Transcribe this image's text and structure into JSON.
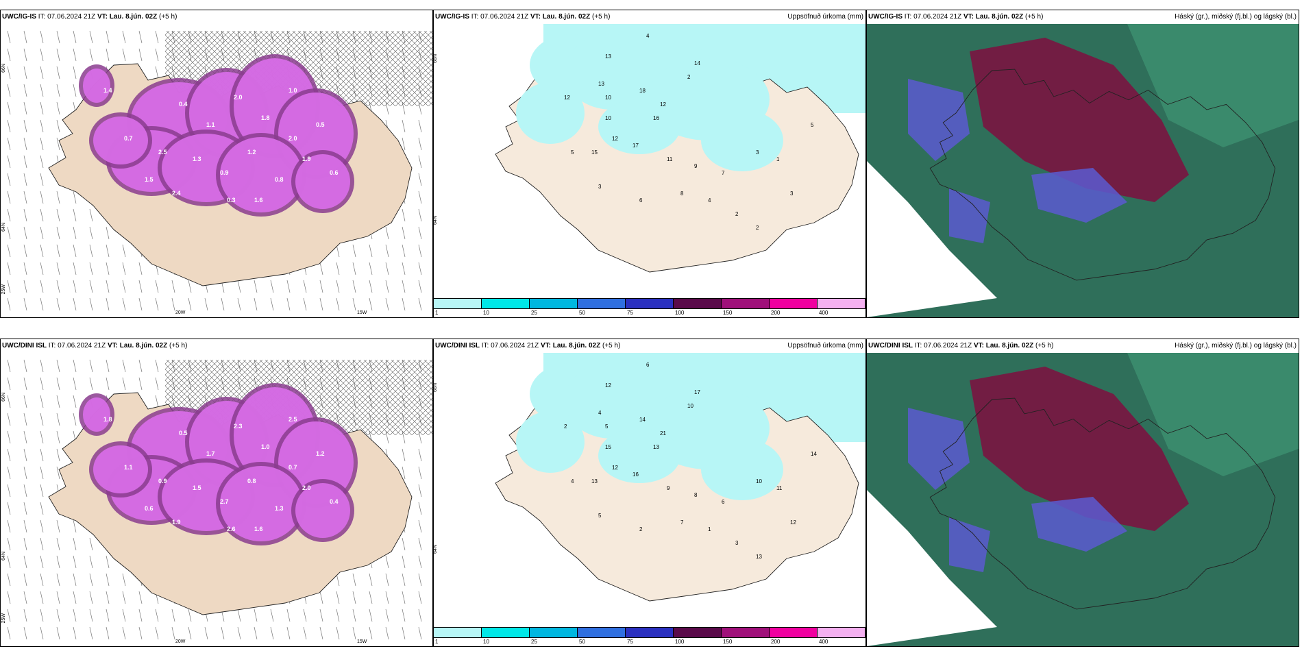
{
  "colors": {
    "land": "#eed9c3",
    "landLight": "#f6eadc",
    "precipCyan": "#b7f6f6",
    "snowMagenta": "#d96ee8",
    "snowDark": "#8a3c8e",
    "cloudHigh": "#7a1440",
    "cloudMid": "#5a5ad0",
    "cloudLow": "#2f7f62",
    "sea": "#ffffff"
  },
  "panels": [
    {
      "model": "UWC/IG-IS",
      "it": "IT: 07.06.2024 21Z",
      "vt_label": "VT:",
      "vt": "Lau. 8.jún. 02Z",
      "lead": "(+5 h)",
      "right": "",
      "lat_labels": [
        "66N",
        "64N",
        "25W"
      ],
      "lon_labels": [
        "20W",
        "15W"
      ],
      "snow_values": [
        "0.4",
        "1.1",
        "2.0",
        "1.8",
        "1.0",
        "0.5",
        "2.5",
        "1.3",
        "0.9",
        "1.2",
        "0.8",
        "1.9",
        "0.7",
        "1.5",
        "2.4",
        "0.3",
        "1.6",
        "0.6",
        "1.4",
        "2.0"
      ]
    },
    {
      "model": "UWC/IG-IS",
      "it": "IT: 07.06.2024 21Z",
      "vt_label": "VT:",
      "vt": "Lau. 8.jún. 02Z",
      "lead": "(+5 h)",
      "right": "Uppsöfnuð úrkoma (mm)",
      "lat_labels": [
        "66N",
        "64N"
      ],
      "precip_values": [
        "4",
        "2",
        "13",
        "14",
        "12",
        "18",
        "16",
        "10",
        "12",
        "17",
        "15",
        "11",
        "9",
        "7",
        "5",
        "3",
        "6",
        "8",
        "4",
        "2",
        "3",
        "1",
        "3",
        "2",
        "5",
        "10",
        "13",
        "12"
      ],
      "colorbar": {
        "ticks": [
          "1",
          "10",
          "25",
          "50",
          "75",
          "100",
          "150",
          "200",
          "400"
        ],
        "colors": [
          "#b7f6f6",
          "#00e8e8",
          "#00b7e0",
          "#2f6fe0",
          "#2a30c0",
          "#5a0a4a",
          "#a0107a",
          "#f000a0",
          "#f4b0f0"
        ]
      }
    },
    {
      "model": "UWC/IG-IS",
      "it": "IT: 07.06.2024 21Z",
      "vt_label": "VT:",
      "vt": "Lau. 8.jún. 02Z",
      "lead": "(+5 h)",
      "right": "Háský (gr.), miðský (fj.bl.) og lágský (bl.)"
    },
    {
      "model": "UWC/DINI ISL",
      "it": "IT: 07.06.2024 21Z",
      "vt_label": "VT:",
      "vt": "Lau. 8.jún. 02Z",
      "lead": "(+5 h)",
      "right": "",
      "lat_labels": [
        "66N",
        "64N",
        "25W"
      ],
      "lon_labels": [
        "20W",
        "15W"
      ],
      "snow_values": [
        "0.5",
        "1.7",
        "2.3",
        "1.0",
        "2.5",
        "1.2",
        "0.9",
        "1.5",
        "2.7",
        "0.8",
        "1.3",
        "2.0",
        "1.1",
        "0.6",
        "1.9",
        "2.6",
        "1.6",
        "0.4",
        "1.8",
        "0.7"
      ]
    },
    {
      "model": "UWC/DINI ISL",
      "it": "IT: 07.06.2024 21Z",
      "vt_label": "VT:",
      "vt": "Lau. 8.jún. 02Z",
      "lead": "(+5 h)",
      "right": "Uppsöfnuð úrkoma (mm)",
      "lat_labels": [
        "66N",
        "64N"
      ],
      "precip_values": [
        "6",
        "10",
        "12",
        "17",
        "21",
        "14",
        "13",
        "15",
        "12",
        "16",
        "13",
        "9",
        "8",
        "6",
        "4",
        "5",
        "2",
        "7",
        "1",
        "3",
        "10",
        "11",
        "12",
        "13",
        "14",
        "5",
        "4",
        "2"
      ],
      "colorbar": {
        "ticks": [
          "1",
          "10",
          "25",
          "50",
          "75",
          "100",
          "150",
          "200",
          "400"
        ],
        "colors": [
          "#b7f6f6",
          "#00e8e8",
          "#00b7e0",
          "#2f6fe0",
          "#2a30c0",
          "#5a0a4a",
          "#a0107a",
          "#f000a0",
          "#f4b0f0"
        ]
      }
    },
    {
      "model": "UWC/DINI ISL",
      "it": "IT: 07.06.2024 21Z",
      "vt_label": "VT:",
      "vt": "Lau. 8.jún. 02Z",
      "lead": "(+5 h)",
      "right": "Háský (gr.), miðský (fj.bl.) og lágský (bl.)"
    }
  ]
}
